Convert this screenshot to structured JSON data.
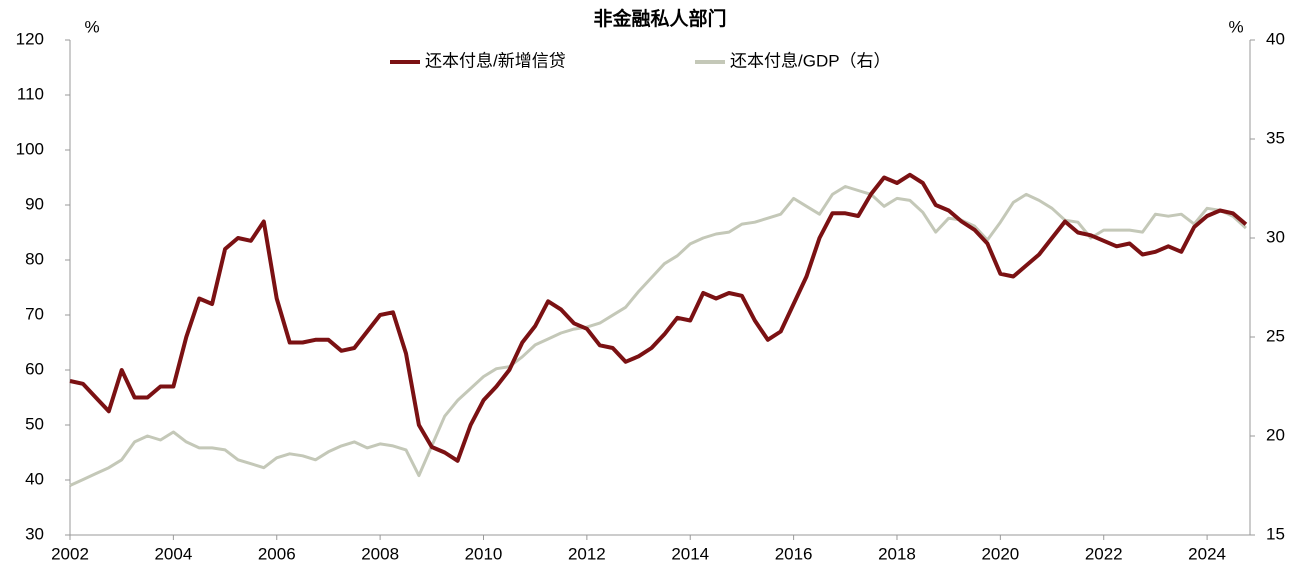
{
  "chart_data": {
    "type": "line",
    "title": "非金融私人部门",
    "y_unit": "%",
    "y2_unit": "%",
    "x": [
      2002,
      2002.25,
      2002.5,
      2002.75,
      2003,
      2003.25,
      2003.5,
      2003.75,
      2004,
      2004.25,
      2004.5,
      2004.75,
      2005,
      2005.25,
      2005.5,
      2005.75,
      2006,
      2006.25,
      2006.5,
      2006.75,
      2007,
      2007.25,
      2007.5,
      2007.75,
      2008,
      2008.25,
      2008.5,
      2008.75,
      2009,
      2009.25,
      2009.5,
      2009.75,
      2010,
      2010.25,
      2010.5,
      2010.75,
      2011,
      2011.25,
      2011.5,
      2011.75,
      2012,
      2012.25,
      2012.5,
      2012.75,
      2013,
      2013.25,
      2013.5,
      2013.75,
      2014,
      2014.25,
      2014.5,
      2014.75,
      2015,
      2015.25,
      2015.5,
      2015.75,
      2016,
      2016.25,
      2016.5,
      2016.75,
      2017,
      2017.25,
      2017.5,
      2017.75,
      2018,
      2018.25,
      2018.5,
      2018.75,
      2019,
      2019.25,
      2019.5,
      2019.75,
      2020,
      2020.25,
      2020.5,
      2020.75,
      2021,
      2021.25,
      2021.5,
      2021.75,
      2022,
      2022.25,
      2022.5,
      2022.75,
      2023,
      2023.25,
      2023.5,
      2023.75,
      2024,
      2024.25,
      2024.5,
      2024.75
    ],
    "series": [
      {
        "name": "还本付息/新增信贷",
        "color": "#7b1113",
        "axis": "y",
        "values": [
          58,
          57.5,
          55,
          52.5,
          60,
          55,
          55,
          57,
          57,
          66,
          73,
          72,
          82,
          84,
          83.5,
          87,
          73,
          65,
          65,
          65.5,
          65.5,
          63.5,
          64,
          67,
          70,
          70.5,
          63,
          50,
          46,
          45,
          43.5,
          50,
          54.5,
          57,
          60,
          65,
          68,
          72.5,
          71,
          68.5,
          67.5,
          64.5,
          64,
          61.5,
          62.5,
          64,
          66.5,
          69.5,
          69,
          74,
          73,
          74,
          73.5,
          69,
          65.5,
          67,
          72,
          77,
          84,
          88.5,
          88.5,
          88,
          92,
          95,
          94,
          95.5,
          94,
          90,
          89,
          87,
          85.5,
          83,
          77.5,
          77,
          79,
          81,
          84,
          87,
          85,
          84.5,
          83.5,
          82.5,
          83,
          81,
          81.5,
          82.5,
          81.5,
          86,
          88,
          89,
          88.5,
          86.5
        ]
      },
      {
        "name": "还本付息/GDP（右）",
        "color": "#c4c8b8",
        "axis": "y2",
        "values": [
          17.5,
          17.8,
          18.1,
          18.4,
          18.8,
          19.7,
          20.0,
          19.8,
          20.2,
          19.7,
          19.4,
          19.4,
          19.3,
          18.8,
          18.6,
          18.4,
          18.9,
          19.1,
          19.0,
          18.8,
          19.2,
          19.5,
          19.7,
          19.4,
          19.6,
          19.5,
          19.3,
          18.0,
          19.5,
          21.0,
          21.8,
          22.4,
          23.0,
          23.4,
          23.5,
          24.0,
          24.6,
          24.9,
          25.2,
          25.4,
          25.5,
          25.7,
          26.1,
          26.5,
          27.3,
          28.0,
          28.7,
          29.1,
          29.7,
          30.0,
          30.2,
          30.3,
          30.7,
          30.8,
          31.0,
          31.2,
          32.0,
          31.6,
          31.2,
          32.2,
          32.6,
          32.4,
          32.2,
          31.6,
          32.0,
          31.9,
          31.3,
          30.3,
          31.0,
          30.9,
          30.6,
          29.9,
          30.8,
          31.8,
          32.2,
          31.9,
          31.5,
          30.9,
          30.8,
          30.0,
          30.4,
          30.4,
          30.4,
          30.3,
          31.2,
          31.1,
          31.2,
          30.7,
          31.5,
          31.4,
          31.1,
          30.5
        ]
      }
    ],
    "xlim": [
      2002,
      2024.83
    ],
    "xticks": [
      2002,
      2004,
      2006,
      2008,
      2010,
      2012,
      2014,
      2016,
      2018,
      2020,
      2022,
      2024
    ],
    "ylim": [
      30,
      120
    ],
    "yticks": [
      30,
      40,
      50,
      60,
      70,
      80,
      90,
      100,
      110,
      120
    ],
    "y2lim": [
      15,
      40
    ],
    "y2ticks": [
      15,
      20,
      25,
      30,
      35,
      40
    ]
  }
}
